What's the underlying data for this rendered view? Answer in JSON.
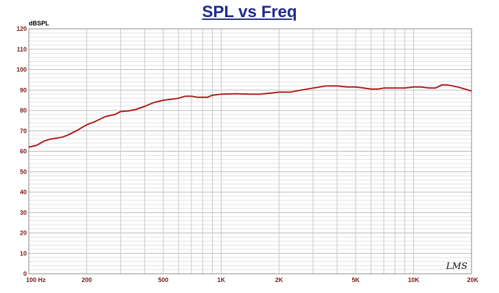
{
  "chart_data": {
    "type": "line",
    "title": "SPL vs Freq",
    "ylabel": "dBSPL",
    "xscale": "log",
    "xlim": [
      100,
      20000
    ],
    "ylim": [
      0,
      120
    ],
    "grid": true,
    "y_ticks": [
      "0",
      "10",
      "20",
      "30",
      "40",
      "50",
      "60",
      "70",
      "80",
      "90",
      "100",
      "110",
      "120"
    ],
    "x_ticks": [
      {
        "value": 100,
        "label": "100  Hz"
      },
      {
        "value": 200,
        "label": "200"
      },
      {
        "value": 500,
        "label": "500"
      },
      {
        "value": 1000,
        "label": "1K"
      },
      {
        "value": 2000,
        "label": "2K"
      },
      {
        "value": 5000,
        "label": "5K"
      },
      {
        "value": 10000,
        "label": "10K"
      },
      {
        "value": 20000,
        "label": "20K"
      }
    ],
    "series": [
      {
        "color": "#b01818",
        "x": [
          100,
          110,
          120,
          130,
          140,
          150,
          160,
          180,
          200,
          220,
          250,
          280,
          300,
          330,
          360,
          400,
          450,
          500,
          550,
          600,
          650,
          700,
          750,
          800,
          850,
          900,
          1000,
          1200,
          1400,
          1600,
          1800,
          2000,
          2300,
          2600,
          3000,
          3500,
          4000,
          4500,
          5000,
          5500,
          6000,
          6500,
          7000,
          8000,
          9000,
          10000,
          11000,
          12000,
          13000,
          14000,
          15000,
          17000,
          20000
        ],
        "y": [
          62,
          63,
          65,
          66,
          66.5,
          67,
          68,
          70.5,
          73,
          74.5,
          77,
          78,
          79.5,
          79.8,
          80.5,
          82,
          84,
          85,
          85.5,
          86,
          87,
          87,
          86.5,
          86.5,
          86.5,
          87.5,
          88,
          88.2,
          88,
          88,
          88.5,
          89,
          89,
          90,
          91,
          92,
          92,
          91.5,
          91.5,
          91,
          90.5,
          90.5,
          91,
          91,
          91,
          91.5,
          91.5,
          91,
          91,
          92.5,
          92.5,
          91.5,
          89.5
        ]
      }
    ]
  },
  "watermark": "LMS",
  "colors": {
    "title": "#1f2b8f",
    "grid": "#c8c8c8",
    "frame": "#888888",
    "ticks": "#7a1a1a",
    "curve": "#b01818"
  }
}
